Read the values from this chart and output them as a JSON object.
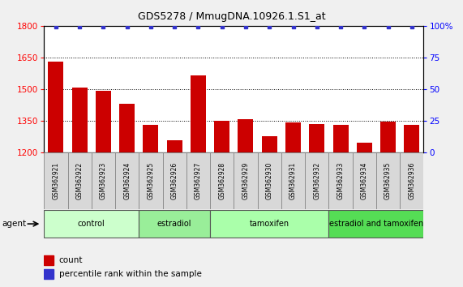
{
  "title": "GDS5278 / MmugDNA.10926.1.S1_at",
  "samples": [
    "GSM362921",
    "GSM362922",
    "GSM362923",
    "GSM362924",
    "GSM362925",
    "GSM362926",
    "GSM362927",
    "GSM362928",
    "GSM362929",
    "GSM362930",
    "GSM362931",
    "GSM362932",
    "GSM362933",
    "GSM362934",
    "GSM362935",
    "GSM362936"
  ],
  "counts": [
    1630,
    1505,
    1490,
    1430,
    1330,
    1255,
    1565,
    1350,
    1355,
    1275,
    1340,
    1335,
    1330,
    1245,
    1345,
    1330
  ],
  "percentile_ranks": [
    99,
    99,
    99,
    99,
    99,
    99,
    99,
    99,
    99,
    99,
    99,
    99,
    99,
    99,
    99,
    99
  ],
  "bar_color": "#cc0000",
  "dot_color": "#3333cc",
  "ylim_left": [
    1200,
    1800
  ],
  "ylim_right": [
    0,
    100
  ],
  "yticks_left": [
    1200,
    1350,
    1500,
    1650,
    1800
  ],
  "yticks_right": [
    0,
    25,
    50,
    75,
    100
  ],
  "groups": [
    {
      "label": "control",
      "start": 0,
      "end": 4,
      "color": "#ccffcc"
    },
    {
      "label": "estradiol",
      "start": 4,
      "end": 7,
      "color": "#99ee99"
    },
    {
      "label": "tamoxifen",
      "start": 7,
      "end": 12,
      "color": "#aaffaa"
    },
    {
      "label": "estradiol and tamoxifen",
      "start": 12,
      "end": 16,
      "color": "#55dd55"
    }
  ],
  "agent_label": "agent",
  "legend_count_label": "count",
  "legend_pct_label": "percentile rank within the sample",
  "fig_bg_color": "#f0f0f0",
  "plot_bg_color": "#ffffff",
  "tick_box_color": "#d8d8d8"
}
